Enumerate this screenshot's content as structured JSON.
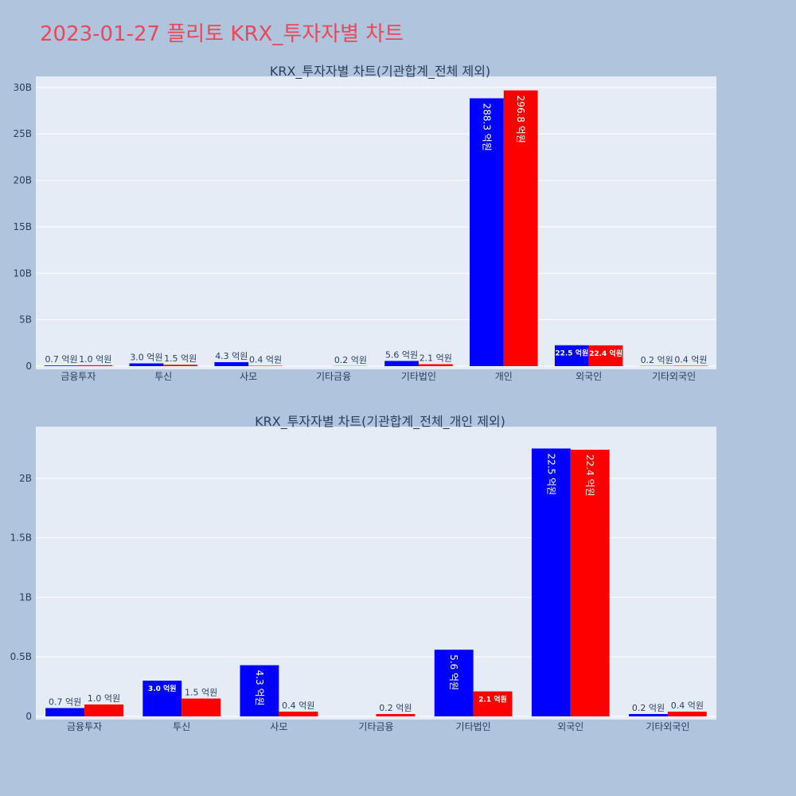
{
  "title": "2023-01-27 플리토 KRX_투자자별 차트",
  "colors": {
    "buy": "#0000ff",
    "sell": "#ff0000",
    "plot_bg": "#e5ecf6",
    "page_bg": "#b0c4de",
    "title": "#e8485a"
  },
  "chart_data": [
    {
      "type": "bar",
      "title": "KRX_투자자별 차트(기관합계_전체 제외)",
      "categories": [
        "금융투자",
        "투신",
        "사모",
        "기타금융",
        "기타법인",
        "개인",
        "외국인",
        "기타외국인"
      ],
      "series": [
        {
          "values": [
            0.07,
            0.3,
            0.43,
            0.0,
            0.56,
            28.83,
            2.25,
            0.02
          ],
          "labels": [
            "0.7 억원",
            "3.0 억원",
            "4.3 억원",
            "",
            "5.6 억원",
            "288.3 억원",
            "22.5 억원",
            "0.2 억원"
          ]
        },
        {
          "values": [
            0.1,
            0.15,
            0.04,
            0.02,
            0.21,
            29.68,
            2.24,
            0.04
          ],
          "labels": [
            "1.0 억원",
            "1.5 억원",
            "0.4 억원",
            "0.2 억원",
            "2.1 억원",
            "296.8 억원",
            "22.4 억원",
            "0.4 억원"
          ]
        }
      ],
      "yticks": [
        0,
        5,
        10,
        15,
        20,
        25,
        30
      ],
      "ytick_labels": [
        "0",
        "5B",
        "10B",
        "15B",
        "20B",
        "25B",
        "30B"
      ],
      "ylim": [
        0,
        30.5
      ],
      "grid": true
    },
    {
      "type": "bar",
      "title": "KRX_투자자별 차트(기관합계_전체_개인 제외)",
      "categories": [
        "금융투자",
        "투신",
        "사모",
        "기타금융",
        "기타법인",
        "외국인",
        "기타외국인"
      ],
      "series": [
        {
          "values": [
            0.07,
            0.3,
            0.43,
            0.0,
            0.56,
            2.25,
            0.02
          ],
          "labels": [
            "0.7 억원",
            "3.0 억원",
            "4.3 억원",
            "",
            "5.6 억원",
            "22.5 억원",
            "0.2 억원"
          ]
        },
        {
          "values": [
            0.1,
            0.15,
            0.04,
            0.02,
            0.21,
            2.24,
            0.04
          ],
          "labels": [
            "1.0 억원",
            "1.5 억원",
            "0.4 억원",
            "0.2 억원",
            "2.1 억원",
            "22.4 억원",
            "0.4 억원"
          ]
        }
      ],
      "yticks": [
        0,
        0.5,
        1,
        1.5,
        2
      ],
      "ytick_labels": [
        "0",
        "0.5B",
        "1B",
        "1.5B",
        "2B"
      ],
      "ylim": [
        0,
        2.38
      ],
      "grid": true
    }
  ]
}
